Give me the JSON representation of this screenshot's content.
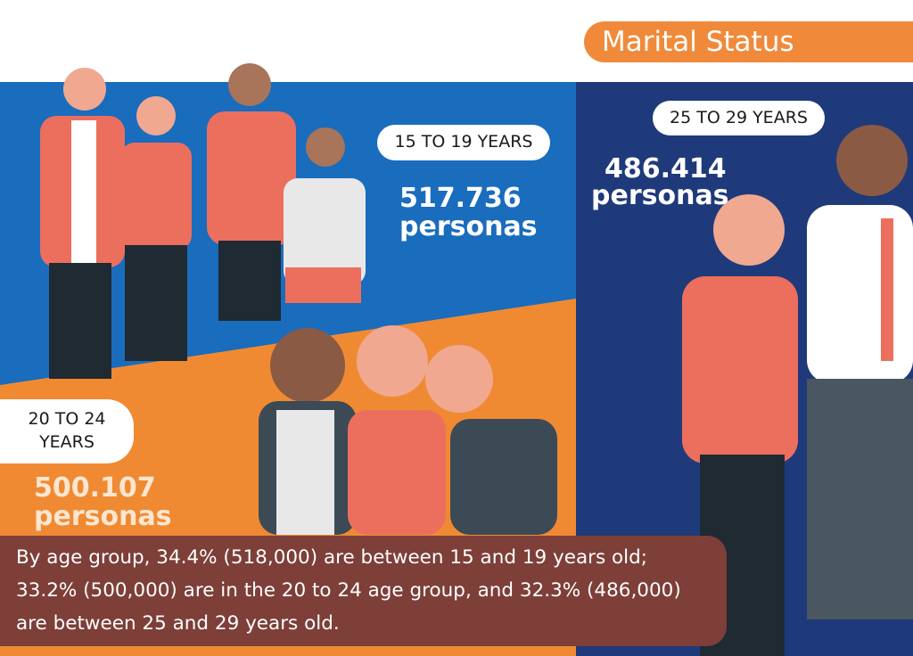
{
  "header": {
    "title": "Marital Status"
  },
  "groups": [
    {
      "label": "15 TO 19 YEARS",
      "value": "517.736",
      "unit": "personas"
    },
    {
      "label": "25 TO 29 YEARS",
      "value": "486.414",
      "unit": "personas"
    },
    {
      "label": "20 TO 24 YEARS",
      "value": "500.107",
      "unit": "personas"
    }
  ],
  "caption": "By age group, 34.4% (518,000) are between 15 and 19 years old; 33.2% (500,000) are in the 20 to 24 age group, and 32.3% (486,000) are between 25 and 29 years old."
}
